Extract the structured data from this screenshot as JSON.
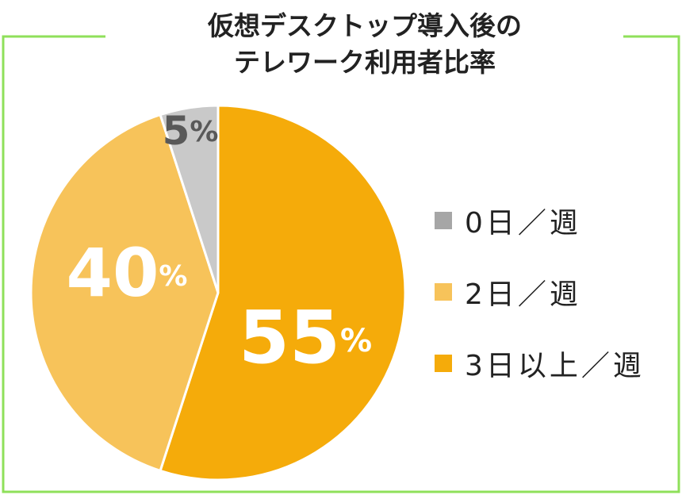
{
  "chart_data": {
    "type": "pie",
    "title_lines": [
      "仮想デスクトップ導入後の",
      "テレワーク利用者比率"
    ],
    "slices": [
      {
        "label": "0日／週",
        "value": 5,
        "display": "5",
        "color": "#c9c9c9",
        "legend_swatch": "#a6a6a6",
        "text_color": "#595959"
      },
      {
        "label": "2日／週",
        "value": 40,
        "display": "40",
        "color": "#f7c35a",
        "legend_swatch": "#f7c35a",
        "text_color": "#ffffff"
      },
      {
        "label": "3日以上／週",
        "value": 55,
        "display": "55",
        "color": "#f5ab0a",
        "legend_swatch": "#f5ab0a",
        "text_color": "#ffffff"
      }
    ],
    "percent_sign": "%",
    "legend_position": "right"
  },
  "frame_color": "#8fe05a"
}
